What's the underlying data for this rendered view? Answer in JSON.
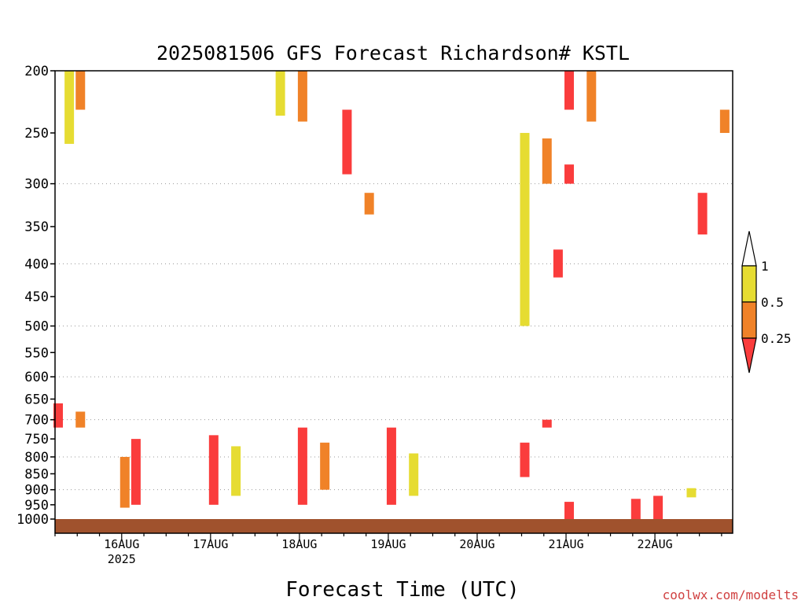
{
  "chart_data": {
    "type": "heatmap",
    "title": "2025081506 GFS Forecast Richardson# KSTL",
    "xlabel": "Forecast Time (UTC)",
    "ylabel": "",
    "y_scale": "log",
    "ylim": [
      1000,
      200
    ],
    "y_ticks": [
      200,
      250,
      300,
      350,
      400,
      450,
      500,
      550,
      600,
      650,
      700,
      750,
      800,
      850,
      900,
      950,
      1000
    ],
    "grid_levels": [
      300,
      400,
      500,
      600,
      700,
      800,
      900
    ],
    "x_start": "2025-08-15 06Z",
    "x_end": "2025-08-22 21Z",
    "x_ticks": [
      {
        "label": "16AUG",
        "sub": "2025",
        "time": "2025-08-16 00Z"
      },
      {
        "label": "17AUG",
        "sub": "",
        "time": "2025-08-17 00Z"
      },
      {
        "label": "18AUG",
        "sub": "",
        "time": "2025-08-18 00Z"
      },
      {
        "label": "19AUG",
        "sub": "",
        "time": "2025-08-19 00Z"
      },
      {
        "label": "20AUG",
        "sub": "",
        "time": "2025-08-20 00Z"
      },
      {
        "label": "21AUG",
        "sub": "",
        "time": "2025-08-21 00Z"
      },
      {
        "label": "22AUG",
        "sub": "",
        "time": "2025-08-22 00Z"
      }
    ],
    "colorbar": {
      "levels": [
        "1",
        "0.5",
        "0.25"
      ],
      "bins": [
        {
          "range": "> 1",
          "color": "#ffffff"
        },
        {
          "range": "0.5 - 1",
          "color": "#e6dc32"
        },
        {
          "range": "0.25 - 0.5",
          "color": "#f08228"
        },
        {
          "range": "< 0.25",
          "color": "#fa3c3c"
        }
      ]
    },
    "ground_color": "#a0522d",
    "patches": [
      {
        "t": "2025-08-15 12Z",
        "p_top": 200,
        "p_bot": 230,
        "cat": "orange"
      },
      {
        "t": "2025-08-15 09Z",
        "p_top": 200,
        "p_bot": 260,
        "cat": "yellow"
      },
      {
        "t": "2025-08-15 06Z",
        "p_top": 660,
        "p_bot": 720,
        "cat": "red"
      },
      {
        "t": "2025-08-15 12Z",
        "p_top": 680,
        "p_bot": 720,
        "cat": "orange"
      },
      {
        "t": "2025-08-16 03Z",
        "p_top": 750,
        "p_bot": 950,
        "cat": "red"
      },
      {
        "t": "2025-08-16 00Z",
        "p_top": 800,
        "p_bot": 960,
        "cat": "orange"
      },
      {
        "t": "2025-08-17 00Z",
        "p_top": 740,
        "p_bot": 950,
        "cat": "red"
      },
      {
        "t": "2025-08-17 06Z",
        "p_top": 770,
        "p_bot": 920,
        "cat": "yellow"
      },
      {
        "t": "2025-08-18 00Z",
        "p_top": 720,
        "p_bot": 950,
        "cat": "red"
      },
      {
        "t": "2025-08-18 06Z",
        "p_top": 760,
        "p_bot": 900,
        "cat": "orange"
      },
      {
        "t": "2025-08-19 00Z",
        "p_top": 720,
        "p_bot": 950,
        "cat": "red"
      },
      {
        "t": "2025-08-19 06Z",
        "p_top": 790,
        "p_bot": 920,
        "cat": "yellow"
      },
      {
        "t": "2025-08-17 18Z",
        "p_top": 200,
        "p_bot": 235,
        "cat": "yellow"
      },
      {
        "t": "2025-08-18 00Z",
        "p_top": 200,
        "p_bot": 240,
        "cat": "orange"
      },
      {
        "t": "2025-08-18 12Z",
        "p_top": 230,
        "p_bot": 290,
        "cat": "red"
      },
      {
        "t": "2025-08-18 18Z",
        "p_top": 310,
        "p_bot": 335,
        "cat": "orange"
      },
      {
        "t": "2025-08-20 12Z",
        "p_top": 250,
        "p_bot": 500,
        "cat": "yellow"
      },
      {
        "t": "2025-08-20 18Z",
        "p_top": 255,
        "p_bot": 300,
        "cat": "orange"
      },
      {
        "t": "2025-08-20 21Z",
        "p_top": 380,
        "p_bot": 420,
        "cat": "red"
      },
      {
        "t": "2025-08-21 00Z",
        "p_top": 200,
        "p_bot": 230,
        "cat": "red"
      },
      {
        "t": "2025-08-21 06Z",
        "p_top": 200,
        "p_bot": 240,
        "cat": "orange"
      },
      {
        "t": "2025-08-21 00Z",
        "p_top": 280,
        "p_bot": 300,
        "cat": "red"
      },
      {
        "t": "2025-08-22 12Z",
        "p_top": 310,
        "p_bot": 360,
        "cat": "red"
      },
      {
        "t": "2025-08-22 18Z",
        "p_top": 230,
        "p_bot": 250,
        "cat": "orange"
      },
      {
        "t": "2025-08-20 18Z",
        "p_top": 700,
        "p_bot": 720,
        "cat": "red"
      },
      {
        "t": "2025-08-20 12Z",
        "p_top": 760,
        "p_bot": 860,
        "cat": "red"
      },
      {
        "t": "2025-08-21 00Z",
        "p_top": 940,
        "p_bot": 1000,
        "cat": "red"
      },
      {
        "t": "2025-08-21 18Z",
        "p_top": 930,
        "p_bot": 1000,
        "cat": "red"
      },
      {
        "t": "2025-08-22 00Z",
        "p_top": 920,
        "p_bot": 1000,
        "cat": "red"
      },
      {
        "t": "2025-08-22 09Z",
        "p_top": 895,
        "p_bot": 925,
        "cat": "yellow"
      }
    ]
  },
  "credit": "coolwx.com/modelts",
  "colors": {
    "yellow": "#e6dc32",
    "orange": "#f08228",
    "red": "#fa3c3c",
    "ground": "#a0522d"
  }
}
